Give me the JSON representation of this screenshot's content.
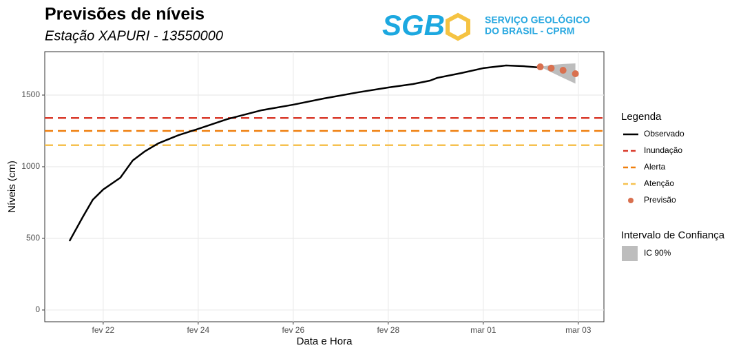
{
  "logo": {
    "text": "SGB",
    "name": [
      "SERVIÇO GEOLÓGICO",
      "DO BRASIL - CPRM"
    ]
  },
  "chart_data": {
    "type": "line",
    "title": "Previsões de níveis",
    "subtitle": "Estação XAPURI - 13550000",
    "x_label": "Data e Hora",
    "y_label": "Níveis (cm)",
    "legend_title": "Legenda",
    "grid": true,
    "xlim": [
      20.77,
      32.54
    ],
    "ylim": [
      -82,
      1803
    ],
    "xticks": [
      {
        "value": 22,
        "label": "fev 22"
      },
      {
        "value": 24,
        "label": "fev 24"
      },
      {
        "value": 26,
        "label": "fev 26"
      },
      {
        "value": 28,
        "label": "fev 28"
      },
      {
        "value": 30,
        "label": "mar 01"
      },
      {
        "value": 32,
        "label": "mar 03"
      }
    ],
    "yticks": [
      0,
      500,
      1000,
      1500
    ],
    "series": [
      {
        "name": "Observado",
        "color": "#000000",
        "x": [
          21.29,
          21.57,
          21.78,
          22,
          22.36,
          22.62,
          22.87,
          23.16,
          23.59,
          24,
          24.61,
          25.33,
          26,
          26.64,
          27.36,
          28,
          28.52,
          28.88,
          29.03,
          29.54,
          30,
          30.48,
          30.84,
          31.2
        ],
        "values": [
          481,
          649,
          769,
          841,
          923,
          1043,
          1106,
          1163,
          1221,
          1264,
          1332,
          1394,
          1433,
          1476,
          1519,
          1553,
          1577,
          1601,
          1620,
          1654,
          1688,
          1707,
          1702,
          1692
        ]
      }
    ],
    "thresholds": [
      {
        "name": "Inundação",
        "color": "#d93a2b",
        "value": 1340
      },
      {
        "name": "Alerta",
        "color": "#ef7f0d",
        "value": 1250
      },
      {
        "name": "Atenção",
        "color": "#f6c150",
        "value": 1150
      }
    ],
    "forecast": {
      "name": "Previsão",
      "color": "#d9704f",
      "x": [
        31.2,
        31.43,
        31.68,
        31.94
      ],
      "values": [
        1697,
        1688,
        1673,
        1649
      ]
    },
    "interval": {
      "title": "Intervalo de Confiança",
      "name": "IC 90%",
      "color": "#bdbdbd",
      "x": [
        31.2,
        31.43,
        31.68,
        31.94
      ],
      "upper": [
        1697,
        1710,
        1717,
        1721
      ],
      "lower": [
        1697,
        1660,
        1620,
        1580
      ]
    }
  }
}
